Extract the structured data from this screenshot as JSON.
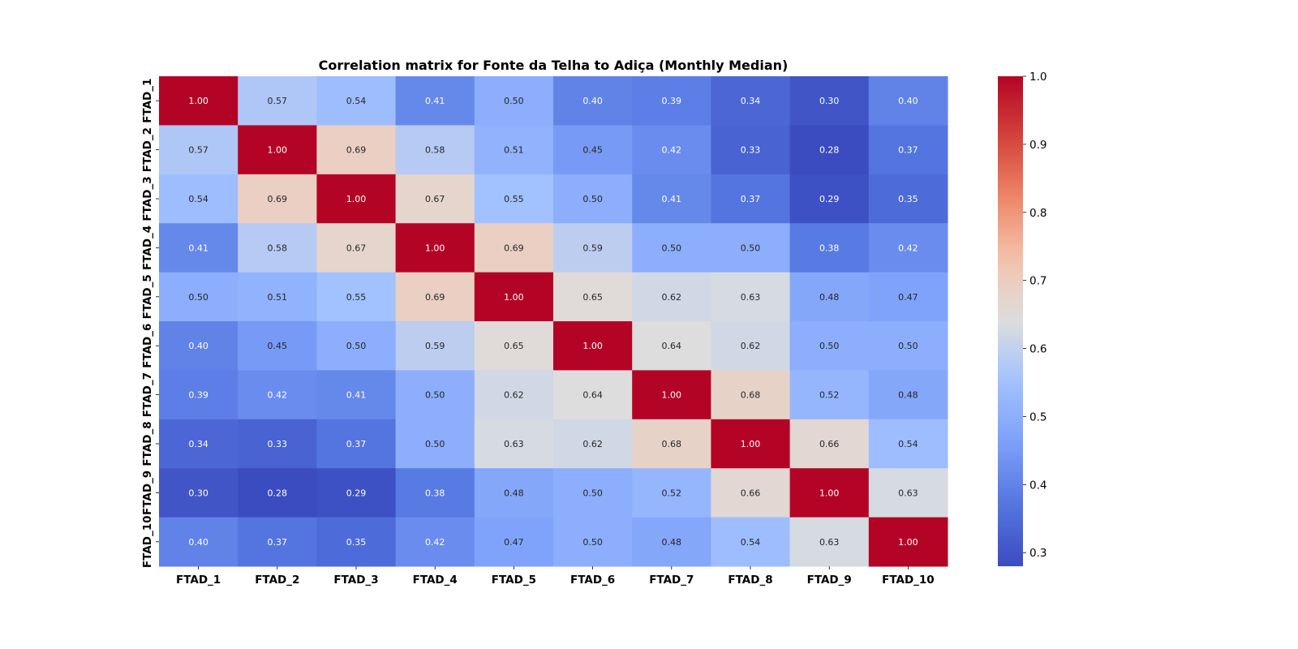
{
  "chart_data": {
    "type": "heatmap",
    "title": "Correlation matrix for Fonte da Telha to Adiça (Monthly Median)",
    "labels": [
      "FTAD_1",
      "FTAD_2",
      "FTAD_3",
      "FTAD_4",
      "FTAD_5",
      "FTAD_6",
      "FTAD_7",
      "FTAD_8",
      "FTAD_9",
      "FTAD_10"
    ],
    "matrix": [
      [
        1.0,
        0.57,
        0.54,
        0.41,
        0.5,
        0.4,
        0.39,
        0.34,
        0.3,
        0.4
      ],
      [
        0.57,
        1.0,
        0.69,
        0.58,
        0.51,
        0.45,
        0.42,
        0.33,
        0.28,
        0.37
      ],
      [
        0.54,
        0.69,
        1.0,
        0.67,
        0.55,
        0.5,
        0.41,
        0.37,
        0.29,
        0.35
      ],
      [
        0.41,
        0.58,
        0.67,
        1.0,
        0.69,
        0.59,
        0.5,
        0.5,
        0.38,
        0.42
      ],
      [
        0.5,
        0.51,
        0.55,
        0.69,
        1.0,
        0.65,
        0.62,
        0.63,
        0.48,
        0.47
      ],
      [
        0.4,
        0.45,
        0.5,
        0.59,
        0.65,
        1.0,
        0.64,
        0.62,
        0.5,
        0.5
      ],
      [
        0.39,
        0.42,
        0.41,
        0.5,
        0.62,
        0.64,
        1.0,
        0.68,
        0.52,
        0.48
      ],
      [
        0.34,
        0.33,
        0.37,
        0.5,
        0.63,
        0.62,
        0.68,
        1.0,
        0.66,
        0.54
      ],
      [
        0.3,
        0.28,
        0.29,
        0.38,
        0.48,
        0.5,
        0.52,
        0.66,
        1.0,
        0.63
      ],
      [
        0.4,
        0.37,
        0.35,
        0.42,
        0.47,
        0.5,
        0.48,
        0.54,
        0.63,
        1.0
      ]
    ],
    "colormap": "coolwarm",
    "vmin": 0.28,
    "vmax": 1.0,
    "colorbar_ticks": [
      "0.3",
      "0.4",
      "0.5",
      "0.6",
      "0.7",
      "0.8",
      "0.9",
      "1.0"
    ],
    "annotations": "2 decimals"
  }
}
